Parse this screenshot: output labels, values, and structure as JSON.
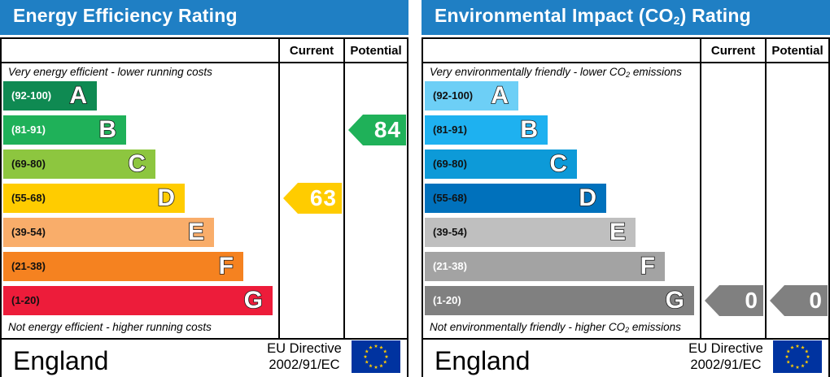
{
  "chart_data": [
    {
      "type": "bar",
      "title": "Energy Efficiency Rating",
      "columns": [
        "Current",
        "Potential"
      ],
      "caption_top": "Very energy efficient - lower running costs",
      "caption_bottom": "Not energy efficient - higher running costs",
      "bands": [
        {
          "range": "(92-100)",
          "letter": "A",
          "color": "#0f8a52",
          "range_color": "#ffffff"
        },
        {
          "range": "(81-91)",
          "letter": "B",
          "color": "#1fb159",
          "range_color": "#ffffff"
        },
        {
          "range": "(69-80)",
          "letter": "C",
          "color": "#8dc63f",
          "range_color": "#111111"
        },
        {
          "range": "(55-68)",
          "letter": "D",
          "color": "#ffcc00",
          "range_color": "#111111"
        },
        {
          "range": "(39-54)",
          "letter": "E",
          "color": "#f9ad6a",
          "range_color": "#111111"
        },
        {
          "range": "(21-38)",
          "letter": "F",
          "color": "#f58220",
          "range_color": "#111111"
        },
        {
          "range": "(1-20)",
          "letter": "G",
          "color": "#ed1c3a",
          "range_color": "#111111"
        }
      ],
      "ratings": {
        "current": {
          "value": "63",
          "band": "D",
          "color": "#ffcc00"
        },
        "potential": {
          "value": "84",
          "band": "B",
          "color": "#1fb159"
        }
      },
      "footer": {
        "country": "England",
        "directive_line1": "EU Directive",
        "directive_line2": "2002/91/EC"
      }
    },
    {
      "type": "bar",
      "title_prefix": "Environmental Impact (CO",
      "title_sub": "2",
      "title_suffix": ") Rating",
      "columns": [
        "Current",
        "Potential"
      ],
      "caption_top_prefix": "Very environmentally friendly - lower CO",
      "caption_top_sub": "2",
      "caption_top_suffix": " emissions",
      "caption_bottom_prefix": "Not environmentally friendly - higher CO",
      "caption_bottom_sub": "2",
      "caption_bottom_suffix": " emissions",
      "bands": [
        {
          "range": "(92-100)",
          "letter": "A",
          "color": "#6dcff6",
          "range_color": "#111111"
        },
        {
          "range": "(81-91)",
          "letter": "B",
          "color": "#1eb1f0",
          "range_color": "#111111"
        },
        {
          "range": "(69-80)",
          "letter": "C",
          "color": "#0d9ad8",
          "range_color": "#111111"
        },
        {
          "range": "(55-68)",
          "letter": "D",
          "color": "#0071bc",
          "range_color": "#111111"
        },
        {
          "range": "(39-54)",
          "letter": "E",
          "color": "#bfbfbf",
          "range_color": "#111111"
        },
        {
          "range": "(21-38)",
          "letter": "F",
          "color": "#a3a3a3",
          "range_color": "#ffffff"
        },
        {
          "range": "(1-20)",
          "letter": "G",
          "color": "#808080",
          "range_color": "#ffffff"
        }
      ],
      "ratings": {
        "current": {
          "value": "0",
          "band": "G",
          "color": "#808080"
        },
        "potential": {
          "value": "0",
          "band": "G",
          "color": "#808080"
        }
      },
      "footer": {
        "country": "England",
        "directive_line1": "EU Directive",
        "directive_line2": "2002/91/EC"
      }
    }
  ]
}
